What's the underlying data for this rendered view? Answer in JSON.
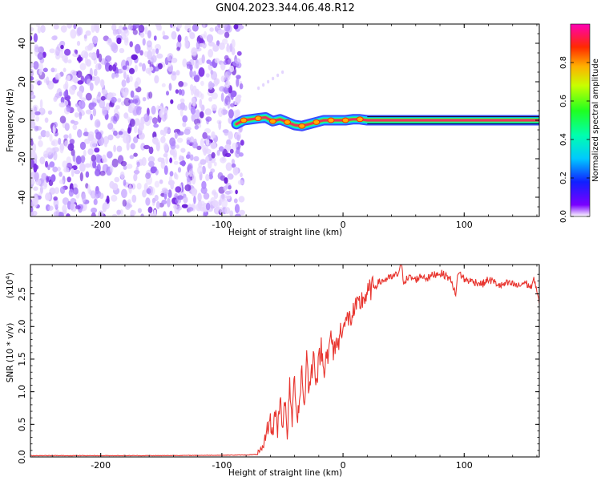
{
  "figure_title": "GN04.2023.344.06.48.R12",
  "colors": {
    "snr_line": "#e8352f",
    "noise": "#7a2ee6",
    "signal_core": "#e8355a"
  },
  "chart_data": [
    {
      "type": "heatmap",
      "title": "GN04.2023.344.06.48.R12",
      "xlabel": "Height of straight line (km)",
      "ylabel": "Frequency (Hz)",
      "xlim": [
        -258,
        162
      ],
      "ylim": [
        -50,
        50
      ],
      "x_ticks": [
        -200,
        -100,
        0,
        100
      ],
      "y_ticks": [
        40,
        20,
        0,
        -20,
        -40
      ],
      "noise_region_x": [
        -258,
        -83
      ],
      "colorbar": {
        "label": "Normalized spectral amplitude",
        "range": [
          0,
          1
        ],
        "ticks": [
          "0.0",
          "0.2",
          "0.4",
          "0.6",
          "0.8"
        ],
        "colormap": "rainbow"
      },
      "signal_track": {
        "x": [
          -88,
          -82,
          -76,
          -70,
          -64,
          -58,
          -52,
          -46,
          -40,
          -34,
          -28,
          -22,
          -16,
          -10,
          -4,
          2,
          8,
          14,
          20,
          40,
          60,
          80,
          100,
          120,
          140,
          162
        ],
        "freq": [
          -2,
          0,
          0.5,
          1,
          1.5,
          -0.5,
          0.5,
          -1,
          -2.5,
          -3,
          -2,
          -1,
          0,
          0,
          0,
          0,
          0.5,
          0.5,
          0,
          0,
          0,
          0,
          0,
          0,
          0,
          0
        ]
      },
      "grid": false
    },
    {
      "type": "line",
      "xlabel": "Height of straight line (km)",
      "ylabel": "SNR (10 * v/v)",
      "multiplier_label": "(x10",
      "multiplier_exp": "4",
      "multiplier_close": ")",
      "xlim": [
        -258,
        162
      ],
      "ylim": [
        0,
        2.95
      ],
      "x_ticks": [
        -200,
        -100,
        0,
        100
      ],
      "y_ticks": [
        "0.0",
        "0.5",
        "1.0",
        "1.5",
        "2.0",
        "2.5"
      ],
      "x": [
        -258,
        -150,
        -80,
        -70,
        -66,
        -63,
        -60,
        -58,
        -56,
        -54,
        -52,
        -50,
        -48,
        -46,
        -44,
        -42,
        -40,
        -38,
        -36,
        -34,
        -32,
        -30,
        -28,
        -26,
        -24,
        -22,
        -20,
        -18,
        -16,
        -14,
        -12,
        -10,
        -8,
        -6,
        -4,
        -2,
        0,
        2,
        4,
        6,
        8,
        10,
        12,
        14,
        16,
        18,
        20,
        22,
        25,
        30,
        35,
        40,
        45,
        48,
        50,
        55,
        60,
        65,
        70,
        75,
        80,
        85,
        90,
        93,
        95,
        100,
        105,
        110,
        115,
        120,
        125,
        130,
        135,
        140,
        145,
        150,
        155,
        158,
        160,
        162
      ],
      "y": [
        0.02,
        0.02,
        0.03,
        0.04,
        0.12,
        0.42,
        0.55,
        0.32,
        0.75,
        0.38,
        0.95,
        0.48,
        0.82,
        0.35,
        1.05,
        0.55,
        1.25,
        0.6,
        0.85,
        1.35,
        0.75,
        1.55,
        1.0,
        1.3,
        1.6,
        1.15,
        1.45,
        1.7,
        1.3,
        1.65,
        1.5,
        1.9,
        1.55,
        1.8,
        1.7,
        1.95,
        2.05,
        2.0,
        2.15,
        2.1,
        2.2,
        2.25,
        2.3,
        2.35,
        2.42,
        2.45,
        2.5,
        2.55,
        2.6,
        2.68,
        2.72,
        2.75,
        2.8,
        2.95,
        2.7,
        2.75,
        2.72,
        2.78,
        2.74,
        2.8,
        2.82,
        2.78,
        2.7,
        2.45,
        2.85,
        2.72,
        2.7,
        2.68,
        2.65,
        2.72,
        2.68,
        2.62,
        2.66,
        2.65,
        2.62,
        2.68,
        2.6,
        2.72,
        2.55,
        2.35
      ],
      "grid": false
    }
  ]
}
